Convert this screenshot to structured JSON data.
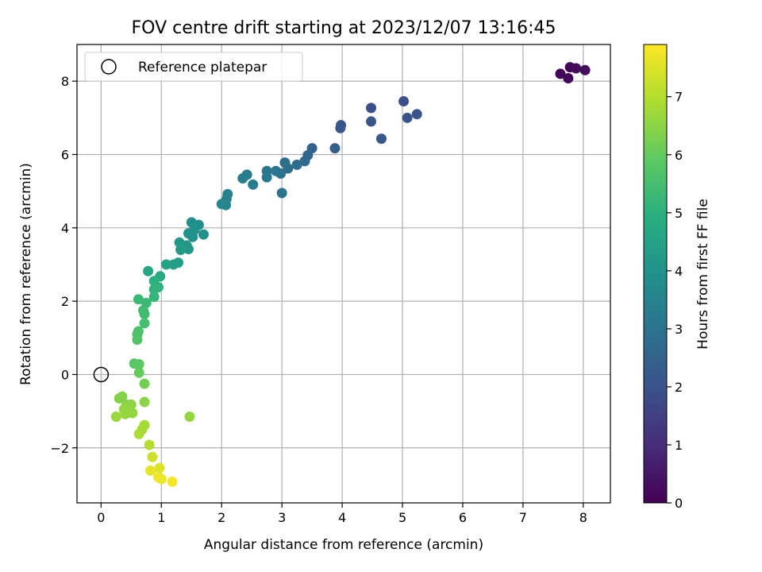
{
  "chart_data": {
    "type": "scatter",
    "title": "FOV centre drift starting at 2023/12/07 13:16:45",
    "xlabel": "Angular distance from reference (arcmin)",
    "ylabel": "Rotation from reference (arcmin)",
    "colorbar_label": "Hours from first FF file",
    "colormap": "viridis",
    "xlim": [
      -0.4,
      8.45
    ],
    "ylim": [
      -3.5,
      9.0
    ],
    "clim": [
      0,
      7.9
    ],
    "x_ticks": [
      0,
      1,
      2,
      3,
      4,
      5,
      6,
      7,
      8
    ],
    "y_ticks": [
      -2,
      0,
      2,
      4,
      6,
      8
    ],
    "colorbar_ticks": [
      0,
      1,
      2,
      3,
      4,
      5,
      6,
      7
    ],
    "grid": true,
    "legend": {
      "placement": "upper-left",
      "entries": [
        "Reference platepar"
      ]
    },
    "reference_point": {
      "x": 0,
      "y": 0
    },
    "points": [
      {
        "x": 7.62,
        "y": 8.2,
        "h": 0.1
      },
      {
        "x": 7.75,
        "y": 8.08,
        "h": 0.15
      },
      {
        "x": 7.78,
        "y": 8.38,
        "h": 0.12
      },
      {
        "x": 7.88,
        "y": 8.35,
        "h": 0.2
      },
      {
        "x": 8.03,
        "y": 8.3,
        "h": 0.25
      },
      {
        "x": 4.48,
        "y": 7.27,
        "h": 1.9
      },
      {
        "x": 5.02,
        "y": 7.45,
        "h": 1.9
      },
      {
        "x": 5.24,
        "y": 7.1,
        "h": 2.0
      },
      {
        "x": 5.08,
        "y": 7.0,
        "h": 2.0
      },
      {
        "x": 4.48,
        "y": 6.9,
        "h": 2.1
      },
      {
        "x": 3.98,
        "y": 6.8,
        "h": 2.1
      },
      {
        "x": 3.97,
        "y": 6.72,
        "h": 2.15
      },
      {
        "x": 4.65,
        "y": 6.43,
        "h": 2.2
      },
      {
        "x": 3.88,
        "y": 6.17,
        "h": 2.3
      },
      {
        "x": 3.5,
        "y": 6.17,
        "h": 2.5
      },
      {
        "x": 3.43,
        "y": 5.98,
        "h": 2.6
      },
      {
        "x": 3.38,
        "y": 5.82,
        "h": 2.7
      },
      {
        "x": 3.25,
        "y": 5.72,
        "h": 2.8
      },
      {
        "x": 3.1,
        "y": 5.62,
        "h": 2.9
      },
      {
        "x": 3.05,
        "y": 5.78,
        "h": 2.9
      },
      {
        "x": 2.98,
        "y": 5.48,
        "h": 3.0
      },
      {
        "x": 2.9,
        "y": 5.55,
        "h": 3.1
      },
      {
        "x": 2.75,
        "y": 5.55,
        "h": 3.1
      },
      {
        "x": 2.75,
        "y": 5.38,
        "h": 3.2
      },
      {
        "x": 3.0,
        "y": 4.95,
        "h": 3.0
      },
      {
        "x": 2.42,
        "y": 5.45,
        "h": 3.3
      },
      {
        "x": 2.35,
        "y": 5.35,
        "h": 3.3
      },
      {
        "x": 2.52,
        "y": 5.18,
        "h": 3.3
      },
      {
        "x": 2.1,
        "y": 4.92,
        "h": 3.5
      },
      {
        "x": 2.08,
        "y": 4.78,
        "h": 3.5
      },
      {
        "x": 2.0,
        "y": 4.65,
        "h": 3.6
      },
      {
        "x": 2.07,
        "y": 4.62,
        "h": 3.6
      },
      {
        "x": 1.5,
        "y": 4.15,
        "h": 3.9
      },
      {
        "x": 1.62,
        "y": 4.08,
        "h": 3.9
      },
      {
        "x": 1.55,
        "y": 3.95,
        "h": 4.0
      },
      {
        "x": 1.45,
        "y": 3.85,
        "h": 4.0
      },
      {
        "x": 1.52,
        "y": 3.75,
        "h": 4.0
      },
      {
        "x": 1.7,
        "y": 3.82,
        "h": 4.0
      },
      {
        "x": 1.3,
        "y": 3.6,
        "h": 4.2
      },
      {
        "x": 1.42,
        "y": 3.52,
        "h": 4.2
      },
      {
        "x": 1.45,
        "y": 3.42,
        "h": 4.2
      },
      {
        "x": 1.32,
        "y": 3.4,
        "h": 4.3
      },
      {
        "x": 1.28,
        "y": 3.05,
        "h": 4.4
      },
      {
        "x": 1.2,
        "y": 3.0,
        "h": 4.4
      },
      {
        "x": 1.08,
        "y": 3.0,
        "h": 4.5
      },
      {
        "x": 0.78,
        "y": 2.82,
        "h": 4.7
      },
      {
        "x": 0.98,
        "y": 2.68,
        "h": 4.8
      },
      {
        "x": 0.88,
        "y": 2.55,
        "h": 5.0
      },
      {
        "x": 0.95,
        "y": 2.38,
        "h": 5.1
      },
      {
        "x": 0.88,
        "y": 2.32,
        "h": 5.1
      },
      {
        "x": 0.88,
        "y": 2.12,
        "h": 5.2
      },
      {
        "x": 0.62,
        "y": 2.05,
        "h": 5.3
      },
      {
        "x": 0.75,
        "y": 1.95,
        "h": 5.3
      },
      {
        "x": 0.7,
        "y": 1.75,
        "h": 5.4
      },
      {
        "x": 0.72,
        "y": 1.65,
        "h": 5.4
      },
      {
        "x": 0.72,
        "y": 1.4,
        "h": 5.5
      },
      {
        "x": 0.62,
        "y": 1.18,
        "h": 5.6
      },
      {
        "x": 0.6,
        "y": 1.1,
        "h": 5.6
      },
      {
        "x": 0.6,
        "y": 0.95,
        "h": 5.7
      },
      {
        "x": 0.55,
        "y": 0.3,
        "h": 5.8
      },
      {
        "x": 0.63,
        "y": 0.28,
        "h": 5.9
      },
      {
        "x": 0.63,
        "y": 0.05,
        "h": 6.0
      },
      {
        "x": 0.72,
        "y": -0.25,
        "h": 6.2
      },
      {
        "x": 0.35,
        "y": -0.6,
        "h": 6.4
      },
      {
        "x": 0.3,
        "y": -0.65,
        "h": 6.4
      },
      {
        "x": 0.72,
        "y": -0.75,
        "h": 6.5
      },
      {
        "x": 0.42,
        "y": -0.82,
        "h": 6.5
      },
      {
        "x": 0.5,
        "y": -0.82,
        "h": 6.5
      },
      {
        "x": 0.38,
        "y": -0.95,
        "h": 6.6
      },
      {
        "x": 0.52,
        "y": -1.05,
        "h": 6.6
      },
      {
        "x": 0.4,
        "y": -1.08,
        "h": 6.6
      },
      {
        "x": 0.25,
        "y": -1.15,
        "h": 6.7
      },
      {
        "x": 1.47,
        "y": -1.15,
        "h": 6.6
      },
      {
        "x": 0.72,
        "y": -1.38,
        "h": 6.8
      },
      {
        "x": 0.68,
        "y": -1.5,
        "h": 6.8
      },
      {
        "x": 0.63,
        "y": -1.62,
        "h": 6.9
      },
      {
        "x": 0.8,
        "y": -1.92,
        "h": 7.0
      },
      {
        "x": 0.85,
        "y": -2.25,
        "h": 7.3
      },
      {
        "x": 0.97,
        "y": -2.55,
        "h": 7.5
      },
      {
        "x": 0.82,
        "y": -2.62,
        "h": 7.6
      },
      {
        "x": 0.95,
        "y": -2.8,
        "h": 7.7
      },
      {
        "x": 1.0,
        "y": -2.85,
        "h": 7.7
      },
      {
        "x": 1.18,
        "y": -2.92,
        "h": 7.8
      }
    ]
  }
}
